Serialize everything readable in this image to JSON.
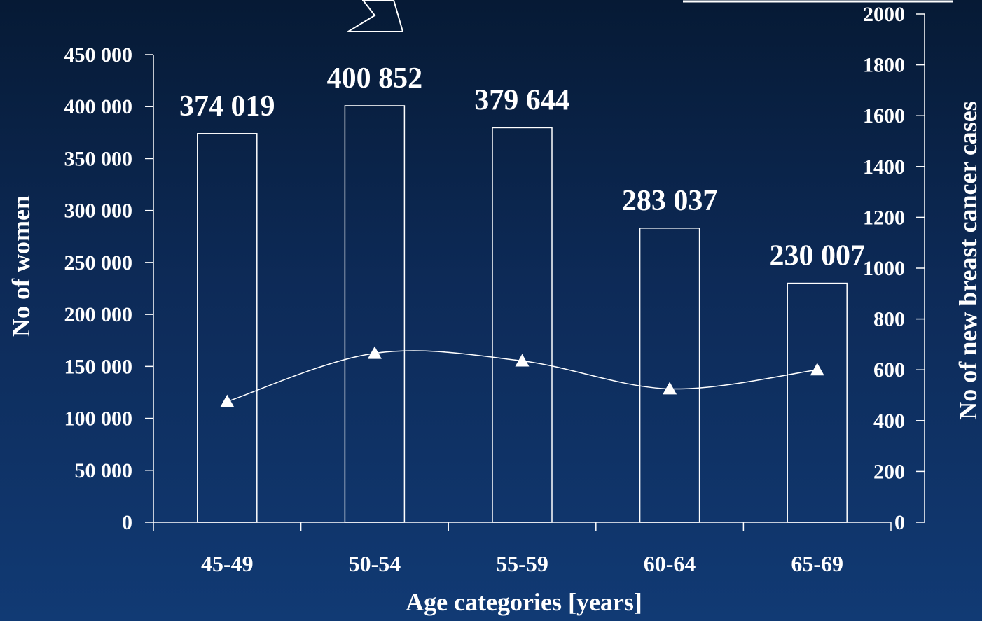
{
  "chart_data": {
    "type": "bar",
    "xlabel": "Age categories [years]",
    "ylabel": "No of women",
    "y2label": "No of new breast cancer cases",
    "categories": [
      "45-49",
      "50-54",
      "55-59",
      "60-64",
      "65-69"
    ],
    "series": [
      {
        "type": "bar",
        "axis": "left",
        "values": [
          374019,
          400852,
          379644,
          283037,
          230007
        ],
        "labels": [
          "374 019",
          "400 852",
          "379 644",
          "283 037",
          "230 007"
        ]
      },
      {
        "type": "line",
        "axis": "right",
        "marker": "triangle",
        "values": [
          475,
          665,
          635,
          525,
          600
        ]
      }
    ],
    "ylim": [
      0,
      450000
    ],
    "y_ticks": [
      0,
      50000,
      100000,
      150000,
      200000,
      250000,
      300000,
      350000,
      400000,
      450000
    ],
    "y_tick_labels": [
      "0",
      "50 000",
      "100 000",
      "150 000",
      "200 000",
      "250 000",
      "300 000",
      "350 000",
      "400 000",
      "450 000"
    ],
    "y2lim": [
      0,
      2000
    ],
    "y2_ticks": [
      0,
      200,
      400,
      600,
      800,
      1000,
      1200,
      1400,
      1600,
      1800,
      2000
    ],
    "y2_tick_labels": [
      "0",
      "200",
      "400",
      "600",
      "800",
      "1000",
      "1200",
      "1400",
      "1600",
      "1800",
      "2000"
    ],
    "colors": {
      "background": "#0d2a57",
      "bar_fill": "#0d2a57",
      "bar_stroke": "#ffffff",
      "line": "#ffffff",
      "text": "#ffffff"
    }
  }
}
